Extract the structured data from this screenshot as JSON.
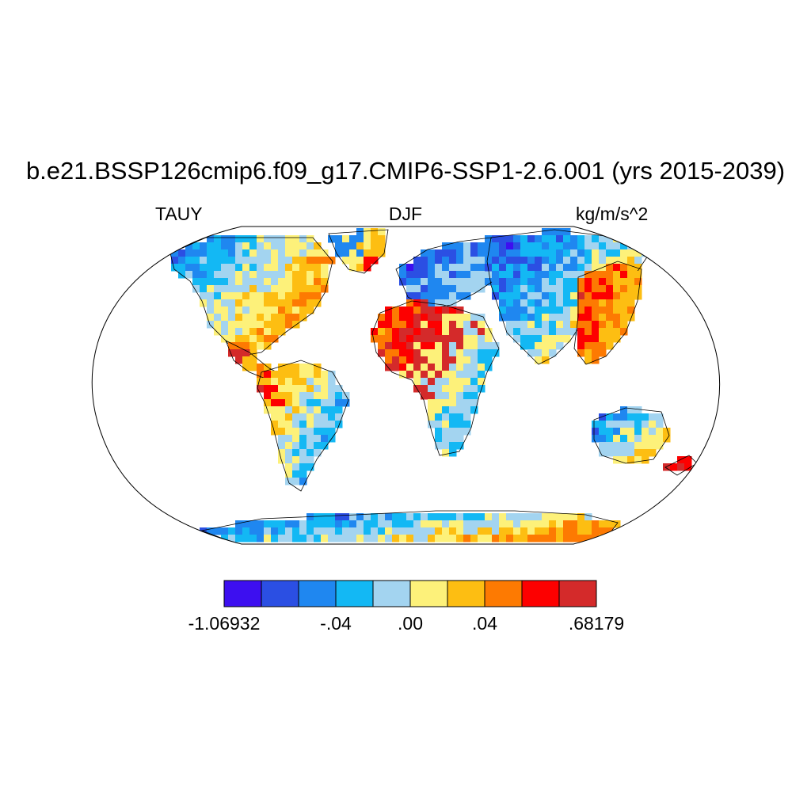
{
  "title": "b.e21.BSSP126cmip6.f09_g17.CMIP6-SSP1-2.6.001 (yrs 2015-2039)",
  "left_label": "TAUY",
  "center_label": "DJF",
  "right_label": "kg/m/s^2",
  "projection": "robinson",
  "colorbar": {
    "colors": [
      "#3d0ff0",
      "#2b4fe3",
      "#1f87f0",
      "#13b8f4",
      "#a3d4f0",
      "#fdf17a",
      "#fdbe12",
      "#fd7a02",
      "#fd0000",
      "#d42a2a"
    ],
    "labels": [
      {
        "text": "-1.06932",
        "boundary": 0
      },
      {
        "text": "-.04",
        "boundary": 3
      },
      {
        "text": ".00",
        "boundary": 5
      },
      {
        "text": ".04",
        "boundary": 7
      },
      {
        "text": ".68179",
        "boundary": 10
      }
    ]
  },
  "regions": [
    {
      "name": "north-america",
      "colors": [
        1,
        2,
        3,
        4,
        5,
        6,
        7
      ]
    },
    {
      "name": "central-america",
      "colors": [
        8,
        9,
        7,
        6
      ]
    },
    {
      "name": "south-america",
      "colors": [
        9,
        8,
        6,
        5,
        4,
        3,
        2
      ]
    },
    {
      "name": "greenland",
      "colors": [
        0,
        1,
        2,
        5,
        6,
        8
      ]
    },
    {
      "name": "europe",
      "colors": [
        0,
        1,
        2,
        4
      ]
    },
    {
      "name": "africa",
      "colors": [
        6,
        7,
        8,
        9,
        5,
        4,
        3
      ]
    },
    {
      "name": "asia",
      "colors": [
        0,
        1,
        2,
        3,
        4,
        5,
        6
      ]
    },
    {
      "name": "east-asia",
      "colors": [
        9,
        8,
        7,
        6
      ]
    },
    {
      "name": "australia",
      "colors": [
        1,
        2,
        3,
        4,
        5,
        6
      ]
    },
    {
      "name": "new-zealand",
      "colors": [
        9,
        8
      ]
    },
    {
      "name": "antarctica",
      "colors": [
        0,
        1,
        2,
        3,
        4,
        5,
        6,
        7
      ]
    }
  ]
}
